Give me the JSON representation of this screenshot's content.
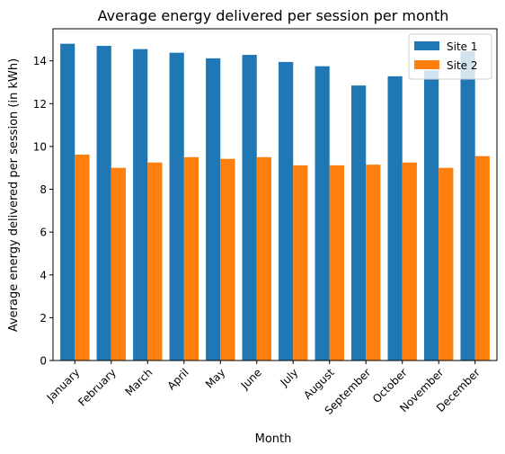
{
  "chart_data": {
    "type": "bar",
    "title": "Average energy delivered per session per month",
    "xlabel": "Month",
    "ylabel": "Average energy delivered per session (in kWh)",
    "categories": [
      "January",
      "February",
      "March",
      "April",
      "May",
      "June",
      "July",
      "August",
      "September",
      "October",
      "November",
      "December"
    ],
    "series": [
      {
        "name": "Site 1",
        "color": "#1f77b4",
        "values": [
          14.8,
          14.7,
          14.55,
          14.38,
          14.12,
          14.28,
          13.95,
          13.75,
          12.85,
          13.28,
          13.55,
          14.45
        ]
      },
      {
        "name": "Site 2",
        "color": "#ff7f0e",
        "values": [
          9.62,
          9.0,
          9.25,
          9.5,
          9.42,
          9.5,
          9.12,
          9.12,
          9.15,
          9.25,
          9.0,
          9.55
        ]
      }
    ],
    "ylim": [
      0,
      15.5
    ],
    "yticks": [
      0,
      2,
      4,
      6,
      8,
      10,
      12,
      14
    ],
    "grid": false,
    "legend": "top-right"
  }
}
